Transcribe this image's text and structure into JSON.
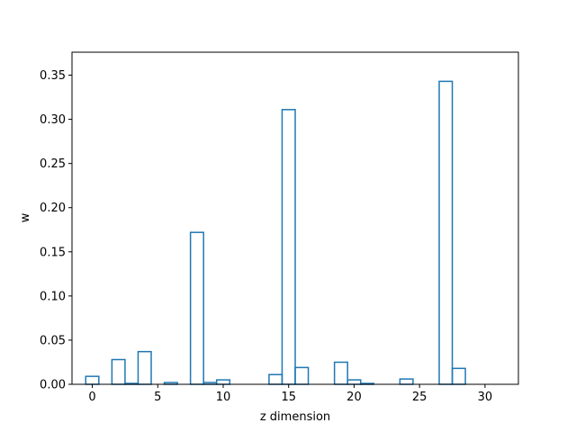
{
  "chart_data": {
    "type": "bar",
    "style": "step-histogram",
    "title": "",
    "xlabel": "z dimension",
    "ylabel": "w",
    "xlim": [
      -1.55,
      32.55
    ],
    "ylim": [
      0,
      0.376
    ],
    "xticks": [
      0,
      5,
      10,
      15,
      20,
      25,
      30
    ],
    "xtick_labels": [
      "0",
      "5",
      "10",
      "15",
      "20",
      "25",
      "30"
    ],
    "yticks": [
      0.0,
      0.05,
      0.1,
      0.15,
      0.2,
      0.25,
      0.3,
      0.35
    ],
    "ytick_labels": [
      "0.00",
      "0.05",
      "0.10",
      "0.15",
      "0.20",
      "0.25",
      "0.30",
      "0.35"
    ],
    "grid": false,
    "line_color": "#1f77b4",
    "x": [
      0,
      1,
      2,
      3,
      4,
      5,
      6,
      7,
      8,
      9,
      10,
      11,
      12,
      13,
      14,
      15,
      16,
      17,
      18,
      19,
      20,
      21,
      22,
      23,
      24,
      25,
      26,
      27,
      28,
      29,
      30,
      31
    ],
    "values": [
      0.009,
      0.0,
      0.028,
      0.001,
      0.037,
      0.0,
      0.002,
      0.0,
      0.172,
      0.002,
      0.005,
      0.0,
      0.0,
      0.0,
      0.011,
      0.311,
      0.019,
      0.0,
      0.0,
      0.025,
      0.005,
      0.001,
      0.0,
      0.0,
      0.006,
      0.0,
      0.0,
      0.343,
      0.018,
      0.0,
      0.0,
      0.0
    ]
  }
}
